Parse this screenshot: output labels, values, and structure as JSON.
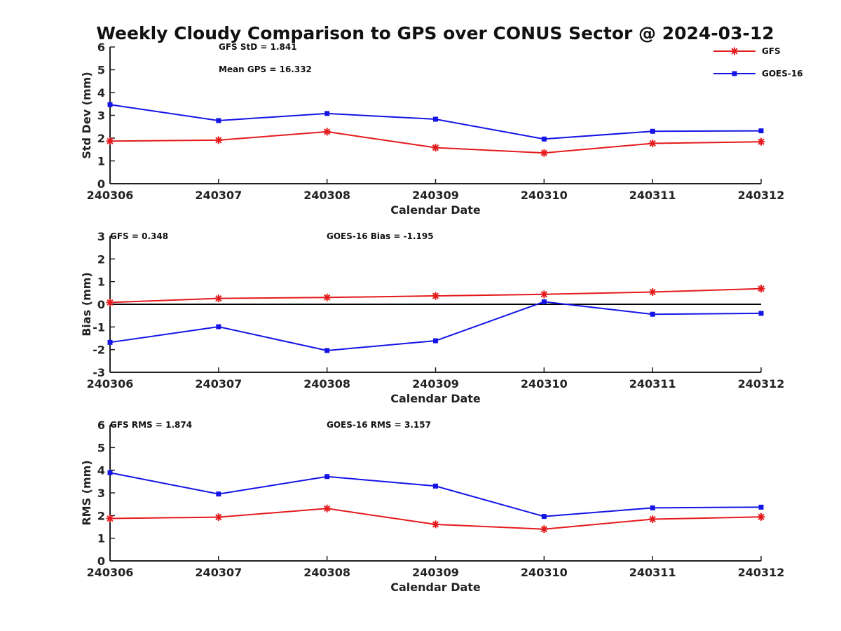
{
  "title": "Weekly Cloudy Comparison to GPS over CONUS Sector @ 2024-03-12",
  "colors": {
    "GFS": "#e41a1c",
    "GOES-16": "#1414e6",
    "zero_line": "#000000"
  },
  "legend": {
    "position": "top-right",
    "entries": [
      {
        "name": "GFS",
        "marker": "asterisk",
        "color": "#e41a1c"
      },
      {
        "name": "GOES-16",
        "marker": "square",
        "color": "#1414e6"
      }
    ]
  },
  "chart_data": [
    {
      "type": "line",
      "xlabel": "Calendar Date",
      "ylabel": "Std Dev (mm)",
      "ylim": [
        0,
        6
      ],
      "yticks": [
        0,
        1,
        2,
        3,
        4,
        5,
        6
      ],
      "categories": [
        "240306",
        "240307",
        "240308",
        "240309",
        "240310",
        "240311",
        "240312"
      ],
      "annotations": [
        "GFS StD = 1.841",
        "Mean GPS = 16.332"
      ],
      "zero_line": false,
      "series": [
        {
          "name": "GFS",
          "values": [
            1.87,
            1.91,
            2.28,
            1.58,
            1.35,
            1.77,
            1.84
          ]
        },
        {
          "name": "GOES-16",
          "values": [
            3.47,
            2.77,
            3.08,
            2.83,
            1.96,
            2.3,
            2.32
          ]
        }
      ]
    },
    {
      "type": "line",
      "xlabel": "Calendar Date",
      "ylabel": "Bias (mm)",
      "ylim": [
        -3,
        3
      ],
      "yticks": [
        -3,
        -2,
        -1,
        0,
        1,
        2,
        3
      ],
      "categories": [
        "240306",
        "240307",
        "240308",
        "240309",
        "240310",
        "240311",
        "240312"
      ],
      "annotations": [
        "GFS = 0.348",
        "GOES-16 Bias  = -1.195"
      ],
      "zero_line": true,
      "series": [
        {
          "name": "GFS",
          "values": [
            0.08,
            0.26,
            0.3,
            0.37,
            0.44,
            0.54,
            0.69
          ]
        },
        {
          "name": "GOES-16",
          "values": [
            -1.68,
            -0.99,
            -2.04,
            -1.61,
            0.11,
            -0.44,
            -0.4
          ]
        }
      ]
    },
    {
      "type": "line",
      "xlabel": "Calendar Date",
      "ylabel": "RMS (mm)",
      "ylim": [
        0,
        6
      ],
      "yticks": [
        0,
        1,
        2,
        3,
        4,
        5,
        6
      ],
      "categories": [
        "240306",
        "240307",
        "240308",
        "240309",
        "240310",
        "240311",
        "240312"
      ],
      "annotations": [
        "GFS RMS = 1.874",
        "GOES-16 RMS = 3.157"
      ],
      "zero_line": false,
      "series": [
        {
          "name": "GFS",
          "values": [
            1.87,
            1.93,
            2.31,
            1.61,
            1.4,
            1.84,
            1.94
          ]
        },
        {
          "name": "GOES-16",
          "values": [
            3.89,
            2.95,
            3.72,
            3.3,
            1.96,
            2.34,
            2.37
          ]
        }
      ]
    }
  ]
}
